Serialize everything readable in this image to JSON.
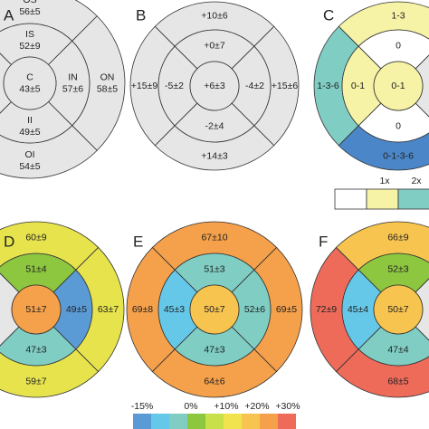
{
  "panels": [
    {
      "label": "A",
      "center": {
        "lines": [
          "C",
          "43±5"
        ],
        "fill": "#e6e6e6"
      },
      "inner": [
        {
          "lines": [
            "IS",
            "52±9"
          ],
          "fill": "#e6e6e6"
        },
        {
          "lines": [
            "IN",
            "57±6"
          ],
          "fill": "#e6e6e6"
        },
        {
          "lines": [
            "II",
            "49±5"
          ],
          "fill": "#e6e6e6"
        },
        null
      ],
      "outer": [
        {
          "lines": [
            "OS",
            "56±5"
          ],
          "fill": "#e6e6e6"
        },
        {
          "lines": [
            "ON",
            "58±5"
          ],
          "fill": "#e6e6e6"
        },
        {
          "lines": [
            "OI",
            "54±5"
          ],
          "fill": "#e6e6e6"
        },
        null
      ]
    },
    {
      "label": "B",
      "center": {
        "lines": [
          "+6±3"
        ],
        "fill": "#e6e6e6"
      },
      "inner": [
        {
          "lines": [
            "+0±7"
          ],
          "fill": "#e6e6e6"
        },
        {
          "lines": [
            "-4±2"
          ],
          "fill": "#e6e6e6"
        },
        {
          "lines": [
            "-2±4"
          ],
          "fill": "#e6e6e6"
        },
        {
          "lines": [
            "-5±2"
          ],
          "fill": "#e6e6e6"
        }
      ],
      "outer": [
        {
          "lines": [
            "+10±6"
          ],
          "fill": "#e6e6e6"
        },
        {
          "lines": [
            "+15±6"
          ],
          "fill": "#e6e6e6"
        },
        {
          "lines": [
            "+14±3"
          ],
          "fill": "#e6e6e6"
        },
        {
          "lines": [
            "+15±9"
          ],
          "fill": "#e6e6e6"
        }
      ]
    },
    {
      "label": "C",
      "center": {
        "lines": [
          "0-1"
        ],
        "fill": "#f6f2a6"
      },
      "inner": [
        {
          "lines": [
            "0"
          ],
          "fill": "#ffffff"
        },
        null,
        {
          "lines": [
            "0"
          ],
          "fill": "#ffffff"
        },
        {
          "lines": [
            "0-1"
          ],
          "fill": "#f6f2a6"
        }
      ],
      "outer": [
        {
          "lines": [
            "1-3"
          ],
          "fill": "#f6f2a6"
        },
        null,
        {
          "lines": [
            "0-1-3-6"
          ],
          "fill": "#4b87c8"
        },
        {
          "lines": [
            "1-3-6"
          ],
          "fill": "#7fcdc3"
        }
      ]
    },
    {
      "label": "D",
      "center": {
        "lines": [
          "51±7"
        ],
        "fill": "#f5a04a"
      },
      "inner": [
        {
          "lines": [
            "51±4"
          ],
          "fill": "#8dc63f"
        },
        {
          "lines": [
            "49±5"
          ],
          "fill": "#5b9bd5"
        },
        {
          "lines": [
            "47±3"
          ],
          "fill": "#7fcdc3"
        },
        null
      ],
      "outer": [
        {
          "lines": [
            "60±9"
          ],
          "fill": "#e6e34d"
        },
        {
          "lines": [
            "63±7"
          ],
          "fill": "#e6e34d"
        },
        {
          "lines": [
            "59±7"
          ],
          "fill": "#e6e34d"
        },
        null
      ]
    },
    {
      "label": "E",
      "center": {
        "lines": [
          "50±7"
        ],
        "fill": "#f7c44f"
      },
      "inner": [
        {
          "lines": [
            "51±3"
          ],
          "fill": "#7fcdc3"
        },
        {
          "lines": [
            "52±6"
          ],
          "fill": "#7fcdc3"
        },
        {
          "lines": [
            "47±3"
          ],
          "fill": "#7fcdc3"
        },
        {
          "lines": [
            "45±3"
          ],
          "fill": "#66c8e8"
        }
      ],
      "outer": [
        {
          "lines": [
            "67±10"
          ],
          "fill": "#f5a04a"
        },
        {
          "lines": [
            "69±5"
          ],
          "fill": "#f5a04a"
        },
        {
          "lines": [
            "64±6"
          ],
          "fill": "#f5a04a"
        },
        {
          "lines": [
            "69±8"
          ],
          "fill": "#f5a04a"
        }
      ]
    },
    {
      "label": "F",
      "center": {
        "lines": [
          "50±7"
        ],
        "fill": "#f7c44f"
      },
      "inner": [
        {
          "lines": [
            "52±3"
          ],
          "fill": "#8dc63f"
        },
        null,
        {
          "lines": [
            "47±4"
          ],
          "fill": "#7fcdc3"
        },
        {
          "lines": [
            "45±4"
          ],
          "fill": "#66c8e8"
        }
      ],
      "outer": [
        {
          "lines": [
            "66±9"
          ],
          "fill": "#f7c44f"
        },
        null,
        {
          "lines": [
            "68±5"
          ],
          "fill": "#ee6b5a"
        },
        {
          "lines": [
            "72±9"
          ],
          "fill": "#ee6b5a"
        }
      ]
    }
  ],
  "c_legend": {
    "colors": [
      "#ffffff",
      "#f6f2a6",
      "#7fcdc3"
    ],
    "labels": [
      "1x",
      "2x"
    ]
  },
  "colorbar": {
    "colors": [
      "#5b9bd5",
      "#66c8e8",
      "#7fcdc3",
      "#8dc63f",
      "#c8e04a",
      "#f0e34e",
      "#f7c44f",
      "#f5a04a",
      "#ee6b5a"
    ],
    "labels": [
      "-15%",
      "0%",
      "+10%",
      "+20%",
      "+30%"
    ]
  }
}
